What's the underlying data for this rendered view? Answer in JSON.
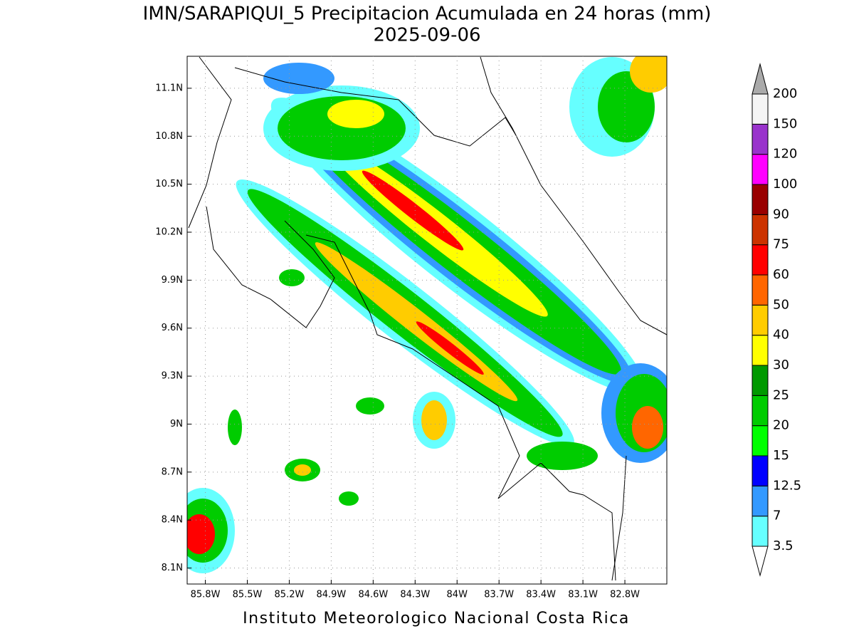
{
  "title": "IMN/SARAPIQUI_5 Precipitacion Acumulada en 24 horas (mm)",
  "subtitle": "2025-09-06",
  "footer": "Instituto Meteorologico Nacional Costa Rica",
  "map": {
    "xlim": [
      -85.93,
      -82.5
    ],
    "ylim": [
      8.0,
      11.3
    ],
    "grid": true,
    "xticks": [
      {
        "value": -85.8,
        "label": "85.8W"
      },
      {
        "value": -85.5,
        "label": "85.5W"
      },
      {
        "value": -85.2,
        "label": "85.2W"
      },
      {
        "value": -84.9,
        "label": "84.9W"
      },
      {
        "value": -84.6,
        "label": "84.6W"
      },
      {
        "value": -84.3,
        "label": "84.3W"
      },
      {
        "value": -84.0,
        "label": "84W"
      },
      {
        "value": -83.7,
        "label": "83.7W"
      },
      {
        "value": -83.4,
        "label": "83.4W"
      },
      {
        "value": -83.1,
        "label": "83.1W"
      },
      {
        "value": -82.8,
        "label": "82.8W"
      }
    ],
    "yticks": [
      {
        "value": 8.1,
        "label": "8.1N"
      },
      {
        "value": 8.4,
        "label": "8.4N"
      },
      {
        "value": 8.7,
        "label": "8.7N"
      },
      {
        "value": 9.0,
        "label": "9N"
      },
      {
        "value": 9.3,
        "label": "9.3N"
      },
      {
        "value": 9.6,
        "label": "9.6N"
      },
      {
        "value": 9.9,
        "label": "9.9N"
      },
      {
        "value": 10.2,
        "label": "10.2N"
      },
      {
        "value": 10.5,
        "label": "10.5N"
      },
      {
        "value": 10.8,
        "label": "10.8N"
      },
      {
        "value": 11.1,
        "label": "11.1N"
      }
    ]
  },
  "colorbar": {
    "levels": [
      3.5,
      7,
      12.5,
      15,
      20,
      25,
      30,
      40,
      50,
      60,
      75,
      90,
      100,
      120,
      150,
      200
    ],
    "colors": [
      "#66ffff",
      "#3399ff",
      "#0000ff",
      "#00ff00",
      "#00cc00",
      "#009900",
      "#ffff00",
      "#ffcc00",
      "#ff6600",
      "#ff0000",
      "#cc3300",
      "#990000",
      "#ff00ff",
      "#9933cc",
      "#f5f5f5"
    ],
    "over_color": "#aaaaaa",
    "under_color": "#ffffff"
  }
}
